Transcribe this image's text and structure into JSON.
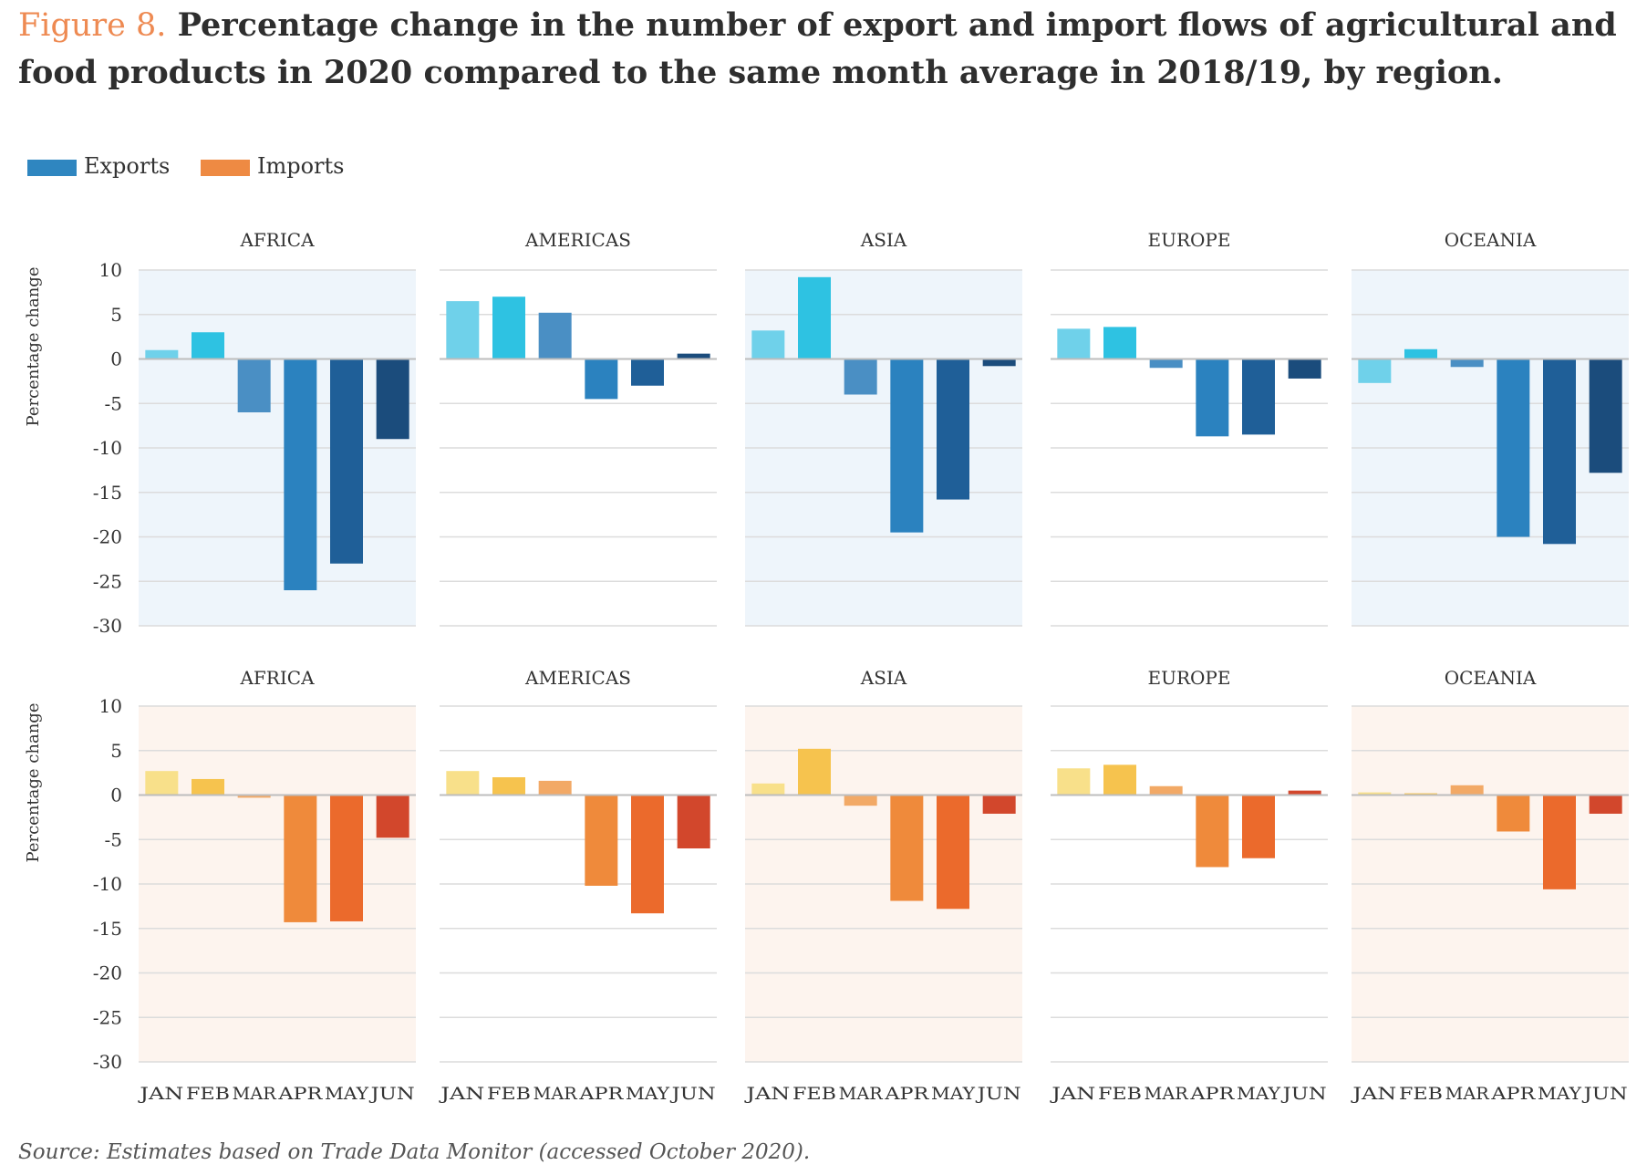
{
  "figure": {
    "label": "Figure 8.",
    "title": "Percentage change in the number of export and import flows of agricultural and food products in 2020 compared to the same month average in 2018/19, by region."
  },
  "legend": [
    {
      "name": "Exports",
      "color": "#2f86c0"
    },
    {
      "name": "Imports",
      "color": "#ee8a43"
    }
  ],
  "source": "Source: Estimates based on Trade Data Monitor (accessed October 2020).",
  "colors": {
    "exports_months": [
      "#6fd1ea",
      "#2ec2e2",
      "#4a8fc4",
      "#2b82bf",
      "#1f5f98",
      "#1b4c7c"
    ],
    "imports_months": [
      "#f8e08a",
      "#f6c34e",
      "#f2a966",
      "#ef8a3b",
      "#eb6a2c",
      "#d2472c"
    ],
    "exports_panel_bg": "#eef5fb",
    "imports_panel_bg": "#fdf4ee",
    "grid": "#dcdcdc",
    "zero_line": "#bdbdbd",
    "text": "#333333"
  },
  "chart_data": [
    {
      "type": "bar",
      "title": "Exports",
      "ylabel": "Percentage change",
      "ylim": [
        -30,
        10
      ],
      "yticks": [
        10,
        5,
        0,
        -5,
        -10,
        -15,
        -20,
        -25,
        -30
      ],
      "categories": [
        "JAN",
        "FEB",
        "MAR",
        "APR",
        "MAY",
        "JUN"
      ],
      "panels": [
        {
          "region": "AFRICA",
          "values": [
            1,
            3,
            -6,
            -26,
            -23,
            -9
          ]
        },
        {
          "region": "AMERICAS",
          "values": [
            6.5,
            7,
            5.2,
            -4.5,
            -3,
            0.6
          ]
        },
        {
          "region": "ASIA",
          "values": [
            3.2,
            9.2,
            -4,
            -19.5,
            -15.8,
            -0.8
          ]
        },
        {
          "region": "EUROPE",
          "values": [
            3.4,
            3.6,
            -1,
            -8.7,
            -8.5,
            -2.2
          ]
        },
        {
          "region": "OCEANIA",
          "values": [
            -2.7,
            1.1,
            -0.9,
            -20,
            -20.8,
            -12.8
          ]
        }
      ]
    },
    {
      "type": "bar",
      "title": "Imports",
      "ylabel": "Percentage change",
      "ylim": [
        -30,
        10
      ],
      "yticks": [
        10,
        5,
        0,
        -5,
        -10,
        -15,
        -20,
        -25,
        -30
      ],
      "categories": [
        "JAN",
        "FEB",
        "MAR",
        "APR",
        "MAY",
        "JUN"
      ],
      "panels": [
        {
          "region": "AFRICA",
          "values": [
            2.7,
            1.8,
            -0.3,
            -14.3,
            -14.2,
            -4.8
          ]
        },
        {
          "region": "AMERICAS",
          "values": [
            2.7,
            2,
            1.6,
            -10.2,
            -13.3,
            -6
          ]
        },
        {
          "region": "ASIA",
          "values": [
            1.3,
            5.2,
            -1.2,
            -11.9,
            -12.8,
            -2.1
          ]
        },
        {
          "region": "EUROPE",
          "values": [
            3,
            3.4,
            1,
            -8.1,
            -7.1,
            0.5
          ]
        },
        {
          "region": "OCEANIA",
          "values": [
            0.3,
            0.2,
            1.1,
            -4.1,
            -10.6,
            -2.1
          ]
        }
      ]
    }
  ]
}
